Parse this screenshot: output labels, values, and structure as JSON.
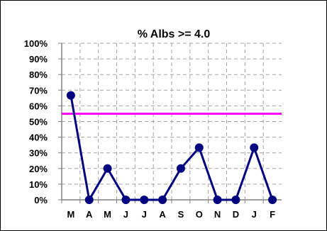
{
  "chart_data": {
    "type": "line",
    "title": "% Albs >= 4.0",
    "categories": [
      "M",
      "A",
      "M",
      "J",
      "J",
      "A",
      "S",
      "O",
      "N",
      "D",
      "J",
      "F"
    ],
    "series": [
      {
        "values": [
          66.7,
          0,
          20,
          0,
          0,
          0,
          20,
          33.3,
          0,
          0,
          33.3,
          0
        ],
        "color": "#000080"
      }
    ],
    "reference_lines": [
      {
        "value": 55,
        "color": "#ff00ff"
      }
    ],
    "y_ticks": [
      "0%",
      "10%",
      "20%",
      "30%",
      "40%",
      "50%",
      "60%",
      "70%",
      "80%",
      "90%",
      "100%"
    ],
    "ylim": [
      0,
      100
    ],
    "grid": true,
    "legend": "none",
    "plot_background": "#c0c0c0"
  }
}
